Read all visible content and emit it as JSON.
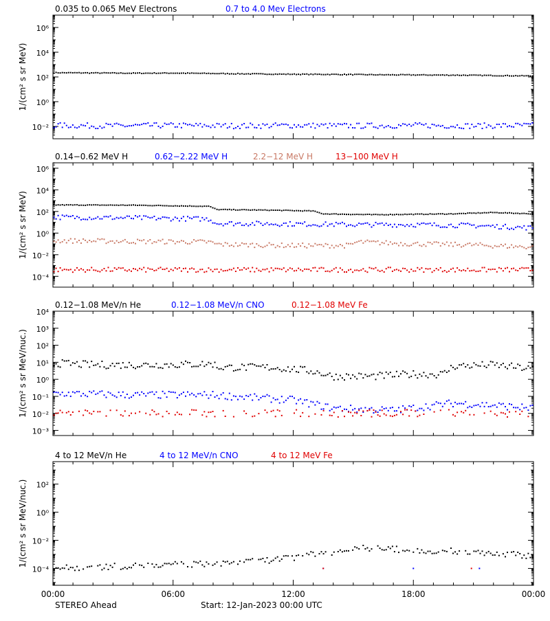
{
  "colors": {
    "black": "#000000",
    "blue": "#0000ff",
    "salmon": "#c87864",
    "red": "#e00000"
  },
  "footer": {
    "spacecraft": "STEREO Ahead",
    "start": "Start: 12-Jan-2023 00:00 UTC"
  },
  "chart_data": [
    {
      "type": "scatter",
      "ylabel": "1/(cm² s sr MeV)",
      "yscale": "log",
      "ylim_log10": [
        -3,
        7
      ],
      "ytick_labels": [
        "10⁶",
        "10⁴",
        "10²",
        "10⁰",
        "10⁻²"
      ],
      "xlim_hours": [
        0,
        24
      ],
      "series": [
        {
          "name": "0.035 to 0.065 MeV Electrons",
          "color": "black",
          "points": [
            [
              0,
              220
            ],
            [
              2,
              210
            ],
            [
              4,
              200
            ],
            [
              6,
              205
            ],
            [
              8,
              190
            ],
            [
              10,
              175
            ],
            [
              12,
              165
            ],
            [
              14,
              160
            ],
            [
              16,
              150
            ],
            [
              18,
              145
            ],
            [
              20,
              140
            ],
            [
              22,
              130
            ],
            [
              24,
              120
            ]
          ]
        },
        {
          "name": "0.7 to 4.0 Mev Electrons",
          "color": "blue",
          "points": [
            [
              0,
              0.012
            ],
            [
              3,
              0.011
            ],
            [
              6,
              0.012
            ],
            [
              9,
              0.011
            ],
            [
              12,
              0.012
            ],
            [
              15,
              0.011
            ],
            [
              18,
              0.012
            ],
            [
              21,
              0.011
            ],
            [
              24,
              0.012
            ]
          ]
        }
      ]
    },
    {
      "type": "scatter",
      "ylabel": "1/(cm² s sr MeV)",
      "yscale": "log",
      "ylim_log10": [
        -5,
        6.5
      ],
      "ytick_labels": [
        "10⁶",
        "10⁴",
        "10²",
        "10⁰",
        "10⁻²",
        "10⁻⁴"
      ],
      "xlim_hours": [
        0,
        24
      ],
      "series": [
        {
          "name": "0.14−0.62 MeV H",
          "color": "black",
          "points": [
            [
              0,
              400
            ],
            [
              4,
              380
            ],
            [
              7.8,
              300
            ],
            [
              8.2,
              150
            ],
            [
              11,
              130
            ],
            [
              13,
              110
            ],
            [
              13.5,
              60
            ],
            [
              16,
              50
            ],
            [
              20,
              60
            ],
            [
              22,
              80
            ],
            [
              24,
              60
            ]
          ]
        },
        {
          "name": "0.62−2.22 MeV H",
          "color": "blue",
          "points": [
            [
              0,
              30
            ],
            [
              4,
              25
            ],
            [
              7.8,
              20
            ],
            [
              8.2,
              8
            ],
            [
              12,
              7
            ],
            [
              15,
              6
            ],
            [
              18,
              6
            ],
            [
              21,
              5
            ],
            [
              24,
              3
            ]
          ]
        },
        {
          "name": "2.2−12 MeV H",
          "color": "salmon",
          "points": [
            [
              0,
              0.2
            ],
            [
              4,
              0.17
            ],
            [
              7.8,
              0.15
            ],
            [
              8.2,
              0.09
            ],
            [
              12,
              0.07
            ],
            [
              14.8,
              0.07
            ],
            [
              15.2,
              0.15
            ],
            [
              18,
              0.1
            ],
            [
              21,
              0.08
            ],
            [
              24,
              0.05
            ]
          ]
        },
        {
          "name": "13−100 MeV H",
          "color": "red",
          "points": [
            [
              0,
              0.0004
            ],
            [
              6,
              0.0004
            ],
            [
              12,
              0.0004
            ],
            [
              18,
              0.0004
            ],
            [
              24,
              0.0004
            ]
          ]
        }
      ]
    },
    {
      "type": "scatter",
      "ylabel": "1/(cm² s sr MeV/nuc.)",
      "yscale": "log",
      "ylim_log10": [
        -3.3,
        4
      ],
      "ytick_labels": [
        "10⁴",
        "10³",
        "10²",
        "10¹",
        "10⁰",
        "10⁻¹",
        "10⁻²",
        "10⁻³"
      ],
      "xlim_hours": [
        0,
        24
      ],
      "series": [
        {
          "name": "0.12−1.08 MeV/n He",
          "color": "black",
          "points": [
            [
              0,
              9
            ],
            [
              2,
              7
            ],
            [
              5,
              7
            ],
            [
              8,
              8
            ],
            [
              8.3,
              5
            ],
            [
              11,
              5
            ],
            [
              13,
              3
            ],
            [
              14,
              1.5
            ],
            [
              16,
              1.5
            ],
            [
              18,
              2
            ],
            [
              19.5,
              2
            ],
            [
              20,
              6
            ],
            [
              22,
              7
            ],
            [
              24,
              4
            ]
          ]
        },
        {
          "name": "0.12−1.08 MeV/n CNO",
          "color": "blue",
          "points": [
            [
              0,
              0.15
            ],
            [
              4,
              0.12
            ],
            [
              8,
              0.12
            ],
            [
              12,
              0.06
            ],
            [
              14,
              0.02
            ],
            [
              17,
              0.015
            ],
            [
              20,
              0.04
            ],
            [
              22,
              0.03
            ],
            [
              24,
              0.02
            ]
          ]
        },
        {
          "name": "0.12−1.08 MeV Fe",
          "color": "red",
          "points": [
            [
              0,
              0.01
            ],
            [
              6,
              0.01
            ],
            [
              12,
              0.01
            ],
            [
              18,
              0.01
            ],
            [
              24,
              0.01
            ]
          ]
        }
      ]
    },
    {
      "type": "scatter",
      "ylabel": "1/(cm² s sr MeV/nuc.)",
      "yscale": "log",
      "ylim_log10": [
        -5.2,
        3.6
      ],
      "ytick_labels": [
        "10²",
        "10⁰",
        "10⁻²",
        "10⁻⁴"
      ],
      "xlim_hours": [
        0,
        24
      ],
      "xtick_labels": [
        "00:00",
        "06:00",
        "12:00",
        "18:00",
        "00:00"
      ],
      "series": [
        {
          "name": "4 to 12 MeV/n He",
          "color": "black",
          "points": [
            [
              0,
              0.0001
            ],
            [
              4,
              0.00015
            ],
            [
              7,
              0.0002
            ],
            [
              10,
              0.0003
            ],
            [
              12,
              0.0006
            ],
            [
              12.6,
              0.0007
            ],
            [
              13,
              0.0012
            ],
            [
              14,
              0.0015
            ],
            [
              15,
              0.003
            ],
            [
              18,
              0.002
            ],
            [
              21,
              0.0015
            ],
            [
              24,
              0.0008
            ]
          ]
        },
        {
          "name": "4 to 12 MeV/n CNO",
          "color": "blue",
          "points": [
            [
              13.5,
              0.0001
            ],
            [
              18,
              0.0001
            ],
            [
              21.3,
              0.0001
            ]
          ]
        },
        {
          "name": "4 to 12 MeV Fe",
          "color": "red",
          "points": [
            [
              13.5,
              0.0001
            ],
            [
              20.9,
              0.0001
            ]
          ]
        }
      ]
    }
  ]
}
